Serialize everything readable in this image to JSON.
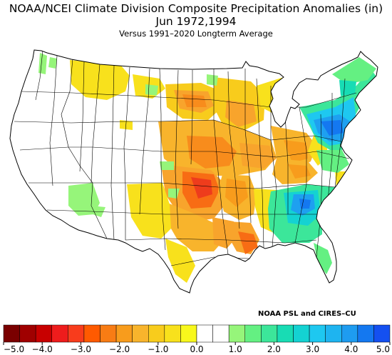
{
  "header": {
    "title": "NOAA/NCEI Climate Division Composite Precipitation Anomalies (in)",
    "subtitle": "Jun   1972,1994",
    "baseline": "Versus 1991–2020 Longterm Average"
  },
  "credit": "NOAA PSL and CIRES–CU",
  "colorbar": {
    "colors": [
      "#7a0000",
      "#a00000",
      "#c80000",
      "#ee1c1c",
      "#f83c1c",
      "#ff5a00",
      "#f87c14",
      "#f89c1c",
      "#f8b42c",
      "#f8cc1c",
      "#f8e11c",
      "#f8f81c",
      "#ffffff",
      "#ffffff",
      "#96f57a",
      "#64f082",
      "#3ce69a",
      "#18dcb4",
      "#14d2d2",
      "#1ec8f0",
      "#1eb4f0",
      "#1e9cf0",
      "#1478f0",
      "#1450f0"
    ],
    "tick_labels": [
      "−5.0",
      "−4.0",
      "−3.0",
      "−2.0",
      "−1.0",
      "0.0",
      "1.0",
      "2.0",
      "3.0",
      "4.0",
      "5.0"
    ]
  },
  "legend_colors": {
    "no_data": "#ffffff",
    "dry_light": "#f8f81c",
    "dry_mid": "#f8b42c",
    "dry_strong": "#f87c14",
    "dry_severe": "#ee3c1c",
    "wet_light": "#96f57a",
    "wet_mid": "#3ce69a",
    "wet_high": "#14d2d2",
    "wet_very": "#1ea0f0",
    "wet_extreme": "#1450f0"
  }
}
